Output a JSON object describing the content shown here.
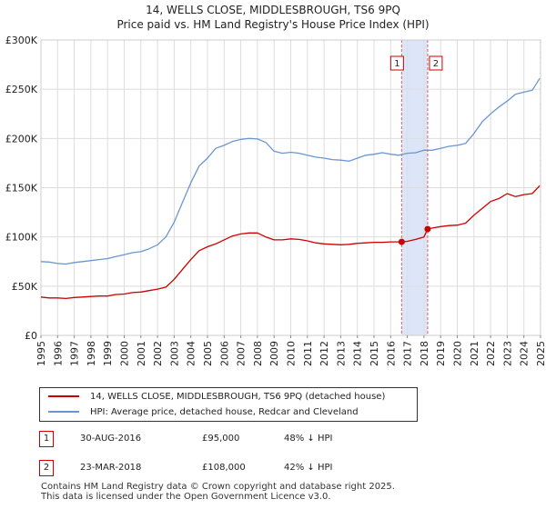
{
  "title": {
    "line1": "14, WELLS CLOSE, MIDDLESBROUGH, TS6 9PQ",
    "line2": "Price paid vs. HM Land Registry's House Price Index (HPI)"
  },
  "colors": {
    "price_line": "#cc0000",
    "hpi_line": "#6a96d0",
    "highlight_fill": "#dce6f8",
    "marker_line": "#e06060",
    "grid": "#dddddd"
  },
  "chart_data": {
    "type": "line",
    "title": "Price paid vs. HM Land Registry's House Price Index (HPI)",
    "xlabel": "",
    "ylabel": "",
    "xlim": [
      1995,
      2025
    ],
    "ylim": [
      0,
      300000
    ],
    "y_ticks": [
      {
        "value": 0,
        "label": "£0"
      },
      {
        "value": 50000,
        "label": "£50K"
      },
      {
        "value": 100000,
        "label": "£100K"
      },
      {
        "value": 150000,
        "label": "£150K"
      },
      {
        "value": 200000,
        "label": "£200K"
      },
      {
        "value": 250000,
        "label": "£250K"
      },
      {
        "value": 300000,
        "label": "£300K"
      }
    ],
    "x_ticks": [
      "1995",
      "1996",
      "1997",
      "1998",
      "1999",
      "2000",
      "2001",
      "2002",
      "2003",
      "2004",
      "2005",
      "2006",
      "2007",
      "2008",
      "2009",
      "2010",
      "2011",
      "2012",
      "2013",
      "2014",
      "2015",
      "2016",
      "2017",
      "2018",
      "2019",
      "2020",
      "2021",
      "2022",
      "2023",
      "2024",
      "2025"
    ],
    "grid": true,
    "highlight_range": [
      2016.66,
      2018.22
    ],
    "series": [
      {
        "name": "14, WELLS CLOSE, MIDDLESBROUGH, TS6 9PQ (detached house)",
        "color": "#cc0000",
        "x": [
          1995.0,
          1995.5,
          1996.0,
          1996.5,
          1997.0,
          1997.5,
          1998.0,
          1998.5,
          1999.0,
          1999.5,
          2000.0,
          2000.5,
          2001.0,
          2001.5,
          2002.0,
          2002.5,
          2003.0,
          2003.5,
          2004.0,
          2004.5,
          2005.0,
          2005.5,
          2006.0,
          2006.5,
          2007.0,
          2007.5,
          2008.0,
          2008.5,
          2009.0,
          2009.5,
          2010.0,
          2010.5,
          2011.0,
          2011.5,
          2012.0,
          2012.5,
          2013.0,
          2013.5,
          2014.0,
          2014.5,
          2015.0,
          2015.5,
          2016.0,
          2016.66,
          2017.0,
          2017.5,
          2018.0,
          2018.22,
          2018.5,
          2019.0,
          2019.5,
          2020.0,
          2020.5,
          2021.0,
          2021.5,
          2022.0,
          2022.5,
          2023.0,
          2023.5,
          2024.0,
          2024.5,
          2024.95
        ],
        "values": [
          39000,
          38000,
          38000,
          37500,
          38500,
          39000,
          39500,
          40000,
          40000,
          41500,
          42000,
          43500,
          44000,
          45500,
          47000,
          49000,
          57000,
          67000,
          77000,
          86000,
          90000,
          93000,
          97000,
          101000,
          103000,
          104000,
          104000,
          100000,
          97000,
          97000,
          98000,
          97500,
          96000,
          94000,
          93000,
          92500,
          92000,
          92500,
          93500,
          94000,
          94500,
          94500,
          95000,
          95000,
          95500,
          97500,
          100000,
          108000,
          109000,
          110500,
          111500,
          112000,
          114000,
          122000,
          129000,
          136000,
          139000,
          144000,
          141000,
          143000,
          144000,
          152000
        ]
      },
      {
        "name": "HPI: Average price, detached house, Redcar and Cleveland",
        "color": "#6a96d0",
        "x": [
          1995.0,
          1995.5,
          1996.0,
          1996.5,
          1997.0,
          1997.5,
          1998.0,
          1998.5,
          1999.0,
          1999.5,
          2000.0,
          2000.5,
          2001.0,
          2001.5,
          2002.0,
          2002.5,
          2003.0,
          2003.5,
          2004.0,
          2004.5,
          2005.0,
          2005.5,
          2006.0,
          2006.5,
          2007.0,
          2007.5,
          2008.0,
          2008.5,
          2009.0,
          2009.5,
          2010.0,
          2010.5,
          2011.0,
          2011.5,
          2012.0,
          2012.5,
          2013.0,
          2013.5,
          2014.0,
          2014.5,
          2015.0,
          2015.5,
          2016.0,
          2016.5,
          2017.0,
          2017.5,
          2018.0,
          2018.5,
          2019.0,
          2019.5,
          2020.0,
          2020.5,
          2021.0,
          2021.5,
          2022.0,
          2022.5,
          2023.0,
          2023.5,
          2024.0,
          2024.5,
          2024.95
        ],
        "values": [
          75000,
          74500,
          73000,
          72500,
          74000,
          75000,
          76000,
          77000,
          78000,
          80000,
          82000,
          84000,
          85000,
          88000,
          92000,
          100000,
          115000,
          135000,
          155000,
          172000,
          180000,
          190000,
          193000,
          197000,
          199000,
          200000,
          199500,
          196000,
          187000,
          185000,
          186000,
          185000,
          183000,
          181000,
          180000,
          178500,
          178000,
          177000,
          180000,
          183000,
          184000,
          185500,
          184000,
          183000,
          185000,
          185500,
          188000,
          188000,
          190000,
          192000,
          193000,
          195000,
          205000,
          217000,
          225000,
          232000,
          238000,
          245000,
          247000,
          249000,
          261000
        ]
      }
    ],
    "sales": [
      {
        "id": "1",
        "x": 2016.66,
        "value": 95000
      },
      {
        "id": "2",
        "x": 2018.22,
        "value": 108000
      }
    ]
  },
  "legend": {
    "items": [
      "14, WELLS CLOSE, MIDDLESBROUGH, TS6 9PQ (detached house)",
      "HPI: Average price, detached house, Redcar and Cleveland"
    ]
  },
  "transactions": [
    {
      "id": "1",
      "date": "30-AUG-2016",
      "price": "£95,000",
      "hpi": "48% ↓ HPI"
    },
    {
      "id": "2",
      "date": "23-MAR-2018",
      "price": "£108,000",
      "hpi": "42% ↓ HPI"
    }
  ],
  "footer": {
    "line1": "Contains HM Land Registry data © Crown copyright and database right 2025.",
    "line2": "This data is licensed under the Open Government Licence v3.0."
  }
}
